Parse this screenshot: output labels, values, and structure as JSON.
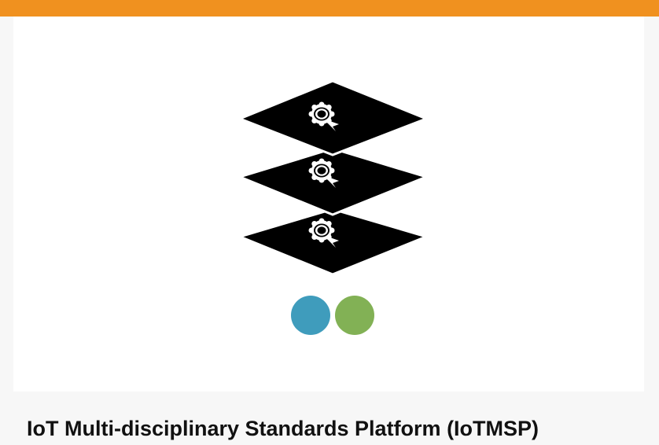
{
  "header": {
    "accent_color": "#f0911f"
  },
  "card": {
    "illustration": {
      "icon": "stacked-certified-layers-icon",
      "layers": [
        {
          "badge_icon": "award-ribbon-icon"
        },
        {
          "badge_icon": "award-ribbon-icon"
        },
        {
          "badge_icon": "award-ribbon-icon"
        }
      ],
      "dots": [
        {
          "name": "teal-dot",
          "color": "#3f9cbc"
        },
        {
          "name": "green-dot",
          "color": "#82b155"
        }
      ]
    },
    "title": "IoT Multi-disciplinary Standards Platform (IoTMSP)"
  }
}
